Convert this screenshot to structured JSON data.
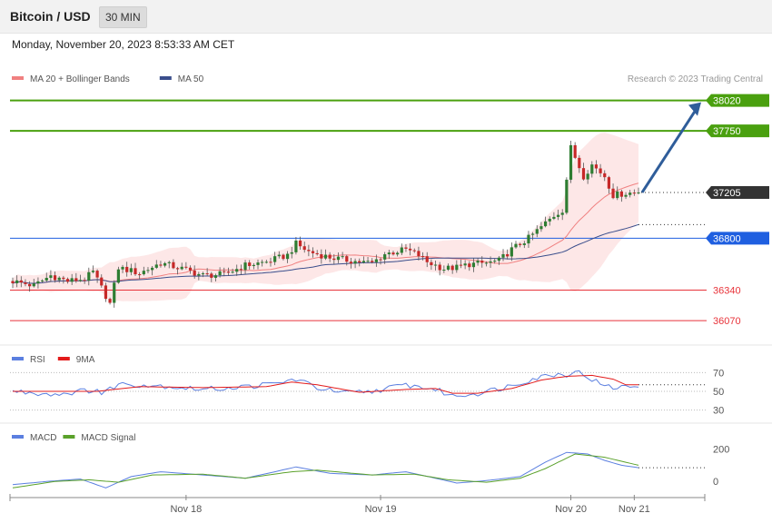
{
  "header": {
    "title": "Bitcoin / USD",
    "timeframe": "30 MIN"
  },
  "datetime": "Monday, November 20, 2023 8:53:33 AM CET",
  "credit": "Research © 2023 Trading Central",
  "colors": {
    "resistance": "#4aa00f",
    "pivot": "#1f5fe0",
    "support": "#e8333a",
    "price_tag": "#333333",
    "ma20": "#f08080",
    "ma50": "#3a4e8c",
    "band_fill": "#fde3e3",
    "candle_up": "#2e7d32",
    "candle_down": "#c62828",
    "arrow": "#2f5d9a",
    "rsi": "#5b7fe0",
    "macd": "#5b7fe0",
    "macd_signal": "#5aa12a"
  },
  "chart_data": [
    {
      "type": "candlestick",
      "title": "",
      "legend": [
        {
          "name": "MA 20 + Bollinger Bands",
          "color": "#f08080"
        },
        {
          "name": "MA 50",
          "color": "#3a4e8c"
        }
      ],
      "x_ticks": [
        "Nov 18",
        "Nov 19",
        "Nov 20",
        "Nov 21"
      ],
      "ylim": [
        35870,
        38250
      ],
      "levels": [
        {
          "value": 38020,
          "label": "38020",
          "kind": "resistance"
        },
        {
          "value": 37750,
          "label": "37750",
          "kind": "resistance"
        },
        {
          "value": 36800,
          "label": "36800",
          "kind": "pivot"
        },
        {
          "value": 36340,
          "label": "36340",
          "kind": "support"
        },
        {
          "value": 36070,
          "label": "36070",
          "kind": "support"
        }
      ],
      "last_price": 37205,
      "target_arrow": {
        "from": 37205,
        "to": 38020
      },
      "close_keypoints": [
        [
          0,
          36420
        ],
        [
          5,
          36380
        ],
        [
          9,
          36470
        ],
        [
          13,
          36420
        ],
        [
          17,
          36440
        ],
        [
          19,
          36500
        ],
        [
          21,
          36360
        ],
        [
          23,
          36220
        ],
        [
          25,
          36540
        ],
        [
          30,
          36490
        ],
        [
          35,
          36580
        ],
        [
          40,
          36530
        ],
        [
          45,
          36470
        ],
        [
          50,
          36480
        ],
        [
          55,
          36560
        ],
        [
          60,
          36590
        ],
        [
          65,
          36650
        ],
        [
          67,
          36750
        ],
        [
          70,
          36680
        ],
        [
          75,
          36630
        ],
        [
          80,
          36600
        ],
        [
          85,
          36580
        ],
        [
          88,
          36660
        ],
        [
          93,
          36700
        ],
        [
          96,
          36650
        ],
        [
          98,
          36590
        ],
        [
          102,
          36530
        ],
        [
          105,
          36540
        ],
        [
          108,
          36570
        ],
        [
          112,
          36580
        ],
        [
          115,
          36600
        ],
        [
          118,
          36700
        ],
        [
          122,
          36800
        ],
        [
          125,
          36900
        ],
        [
          128,
          37000
        ],
        [
          130,
          37050
        ],
        [
          132,
          37600
        ],
        [
          135,
          37350
        ],
        [
          137,
          37450
        ],
        [
          140,
          37350
        ],
        [
          142,
          37180
        ],
        [
          145,
          37200
        ],
        [
          148,
          37205
        ]
      ]
    },
    {
      "type": "line",
      "title": "",
      "legend": [
        {
          "name": "RSI",
          "color": "#5b7fe0"
        },
        {
          "name": "9MA",
          "color": "#e31b1b"
        }
      ],
      "ylim": [
        20,
        80
      ],
      "y_ticks": [
        "70",
        "50",
        "30"
      ],
      "rsi_keypoints": [
        [
          0,
          50
        ],
        [
          10,
          47
        ],
        [
          20,
          52
        ],
        [
          21,
          47
        ],
        [
          25,
          58
        ],
        [
          35,
          56
        ],
        [
          45,
          52
        ],
        [
          55,
          55
        ],
        [
          62,
          58
        ],
        [
          67,
          63
        ],
        [
          72,
          54
        ],
        [
          78,
          48
        ],
        [
          85,
          50
        ],
        [
          93,
          57
        ],
        [
          100,
          52
        ],
        [
          104,
          45
        ],
        [
          110,
          48
        ],
        [
          116,
          54
        ],
        [
          122,
          62
        ],
        [
          127,
          68
        ],
        [
          131,
          68
        ],
        [
          133,
          72
        ],
        [
          137,
          63
        ],
        [
          140,
          55
        ],
        [
          143,
          54
        ],
        [
          148,
          56
        ]
      ],
      "rsi_9ma_keypoints": [
        [
          0,
          50
        ],
        [
          20,
          50
        ],
        [
          30,
          55
        ],
        [
          45,
          54
        ],
        [
          60,
          55
        ],
        [
          66,
          60
        ],
        [
          72,
          57
        ],
        [
          82,
          49
        ],
        [
          93,
          52
        ],
        [
          100,
          53
        ],
        [
          104,
          48
        ],
        [
          110,
          48
        ],
        [
          118,
          53
        ],
        [
          125,
          62
        ],
        [
          131,
          66
        ],
        [
          137,
          67
        ],
        [
          142,
          63
        ],
        [
          145,
          57
        ],
        [
          148,
          57
        ]
      ]
    },
    {
      "type": "line",
      "title": "",
      "legend": [
        {
          "name": "MACD",
          "color": "#5b7fe0"
        },
        {
          "name": "MACD Signal",
          "color": "#5aa12a"
        }
      ],
      "ylim": [
        -100,
        260
      ],
      "y_ticks": [
        "200",
        "0"
      ],
      "macd_keypoints": [
        [
          0,
          -20
        ],
        [
          8,
          0
        ],
        [
          16,
          15
        ],
        [
          22,
          -40
        ],
        [
          28,
          30
        ],
        [
          35,
          60
        ],
        [
          45,
          40
        ],
        [
          55,
          20
        ],
        [
          62,
          60
        ],
        [
          67,
          90
        ],
        [
          75,
          50
        ],
        [
          85,
          40
        ],
        [
          93,
          60
        ],
        [
          100,
          20
        ],
        [
          105,
          -10
        ],
        [
          112,
          5
        ],
        [
          120,
          30
        ],
        [
          126,
          120
        ],
        [
          131,
          180
        ],
        [
          136,
          170
        ],
        [
          140,
          130
        ],
        [
          144,
          100
        ],
        [
          148,
          85
        ]
      ],
      "macd_signal_keypoints": [
        [
          0,
          -40
        ],
        [
          10,
          0
        ],
        [
          18,
          10
        ],
        [
          25,
          -5
        ],
        [
          33,
          40
        ],
        [
          45,
          45
        ],
        [
          55,
          20
        ],
        [
          66,
          60
        ],
        [
          72,
          70
        ],
        [
          85,
          40
        ],
        [
          95,
          45
        ],
        [
          103,
          10
        ],
        [
          112,
          -5
        ],
        [
          120,
          20
        ],
        [
          126,
          80
        ],
        [
          133,
          170
        ],
        [
          140,
          150
        ],
        [
          148,
          100
        ]
      ]
    }
  ]
}
